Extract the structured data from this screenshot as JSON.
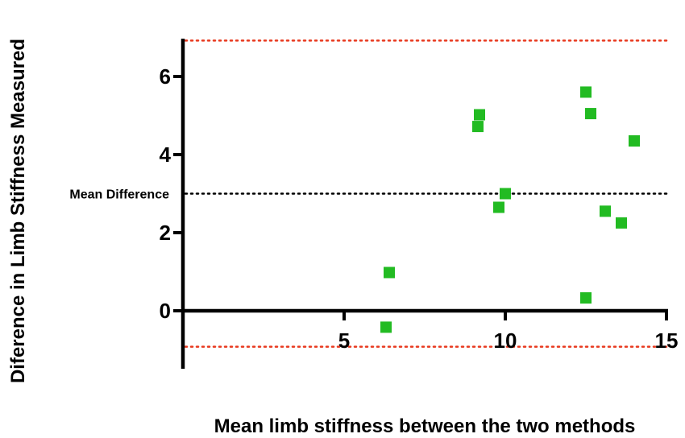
{
  "chart_data": {
    "type": "scatter",
    "title": "",
    "xlabel": "Mean limb stiffness between the two methods",
    "ylabel": "Diference in Limb Stiffness Measured",
    "xlim": [
      0,
      15
    ],
    "ylim": [
      -1.5,
      7.5
    ],
    "x_ticks": [
      5,
      10,
      15
    ],
    "y_ticks": [
      0,
      2,
      4,
      6
    ],
    "grid": false,
    "marker_color": "#22bb22",
    "limit_line_color": "#e8391e",
    "mean_line_color": "#000000",
    "series": [
      {
        "points": [
          {
            "x": 6.3,
            "y": -0.42
          },
          {
            "x": 6.4,
            "y": 0.98
          },
          {
            "x": 9.15,
            "y": 4.72
          },
          {
            "x": 9.2,
            "y": 5.02
          },
          {
            "x": 9.8,
            "y": 2.65
          },
          {
            "x": 10.0,
            "y": 3.0
          },
          {
            "x": 12.5,
            "y": 5.6
          },
          {
            "x": 12.65,
            "y": 5.05
          },
          {
            "x": 12.5,
            "y": 0.33
          },
          {
            "x": 13.1,
            "y": 2.55
          },
          {
            "x": 13.6,
            "y": 2.25
          },
          {
            "x": 14.0,
            "y": 4.35
          }
        ]
      }
    ],
    "reference_lines": [
      {
        "y": 6.92,
        "style": "dotted",
        "color": "#e8391e"
      },
      {
        "y": 3.0,
        "style": "dotted",
        "color": "#000000",
        "label": "Mean Difference"
      },
      {
        "y": -0.92,
        "style": "dotted",
        "color": "#e8391e"
      }
    ]
  }
}
